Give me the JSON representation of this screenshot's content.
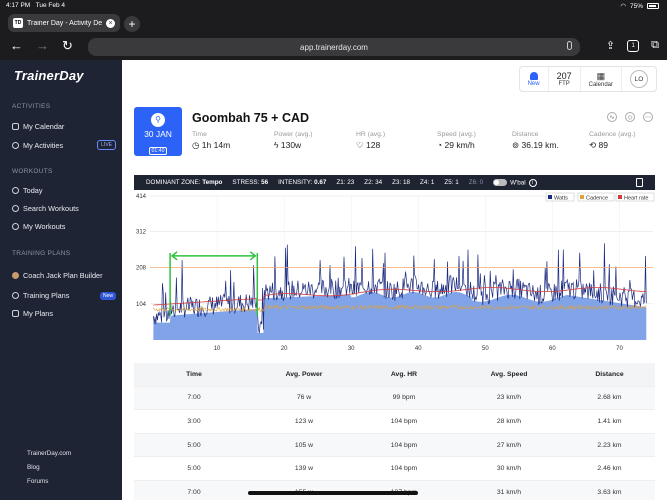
{
  "status": {
    "time": "4:17 PM",
    "date": "Tue Feb 4",
    "battery": "75%"
  },
  "browser": {
    "tab_title": "Trainer Day - Activity De",
    "tab_favicon": "TD",
    "url": "app.trainerday.com",
    "tab_count": "1"
  },
  "sidebar": {
    "logo": "TrainerDay",
    "activities_header": "ACTIVITIES",
    "my_calendar": "My Calendar",
    "my_activities": "My Activities",
    "live_badge": "LIVE",
    "workouts_header": "WORKOUTS",
    "today": "Today",
    "search_workouts": "Search Workouts",
    "my_workouts": "My Workouts",
    "training_plans_header": "TRAINING PLANS",
    "coach_jack": "Coach Jack Plan Builder",
    "training_plans": "Training Plans",
    "new_badge": "New",
    "my_plans": "My Plans",
    "footer": [
      "TrainerDay.com",
      "Blog",
      "Forums"
    ]
  },
  "topbar": {
    "new_label": "New",
    "ftp_value": "207",
    "ftp_label": "FTP",
    "calendar_label": "Calendar",
    "avatar": "LO"
  },
  "activity": {
    "date_day": "30 JAN",
    "date_time": "01:40",
    "title": "Goombah 75 + CAD",
    "stats": [
      {
        "label": "Time",
        "value": "1h 14m"
      },
      {
        "label": "Power (avg.)",
        "value": "130w"
      },
      {
        "label": "HR (avg.)",
        "value": "128"
      },
      {
        "label": "Speed (avg.)",
        "value": "29 km/h"
      },
      {
        "label": "Distance",
        "value": "36.19 km."
      },
      {
        "label": "Cadence (avg.)",
        "value": "89"
      }
    ]
  },
  "zone_bar": {
    "dominant_label": "DOMINANT ZONE:",
    "dominant_value": "Tempo",
    "stress_label": "STRESS:",
    "stress_value": "56",
    "intensity_label": "INTENSITY:",
    "intensity_value": "0.67",
    "zones": [
      "Z1: 23",
      "Z2: 34",
      "Z3: 18",
      "Z4: 1",
      "Z5: 1",
      "Z6: 0"
    ],
    "wbal_label": "W'bal"
  },
  "chart_data": {
    "type": "area",
    "series": [
      {
        "name": "Watts",
        "color": "#1a2a80"
      },
      {
        "name": "Cadence",
        "color": "#e2a23a"
      },
      {
        "name": "Heart rate",
        "color": "#d23c3c"
      }
    ],
    "yticks": [
      104,
      208,
      312,
      414
    ],
    "xticks": [
      10,
      20,
      30,
      40,
      50,
      60,
      70
    ],
    "ylim": [
      0,
      414
    ],
    "xlim": [
      0,
      75
    ],
    "ftp_line": 208,
    "fill_color": "#7399e6",
    "highlight_color": "#2ec23e",
    "highlight_start": 3,
    "highlight_end": 16
  },
  "table": {
    "headers": [
      "Time",
      "Avg. Power",
      "Avg. HR",
      "Avg. Speed",
      "Distance"
    ],
    "rows": [
      [
        "7:00",
        "76 w",
        "99 bpm",
        "23 km/h",
        "2.68 km"
      ],
      [
        "3:00",
        "123 w",
        "104 bpm",
        "28 km/h",
        "1.41 km"
      ],
      [
        "5:00",
        "105 w",
        "104 bpm",
        "27 km/h",
        "2.23 km"
      ],
      [
        "5:00",
        "139 w",
        "104 bpm",
        "30 km/h",
        "2.46 km"
      ],
      [
        "7:00",
        "155 w",
        "137 bpm",
        "31 km/h",
        "3.63 km"
      ]
    ]
  }
}
